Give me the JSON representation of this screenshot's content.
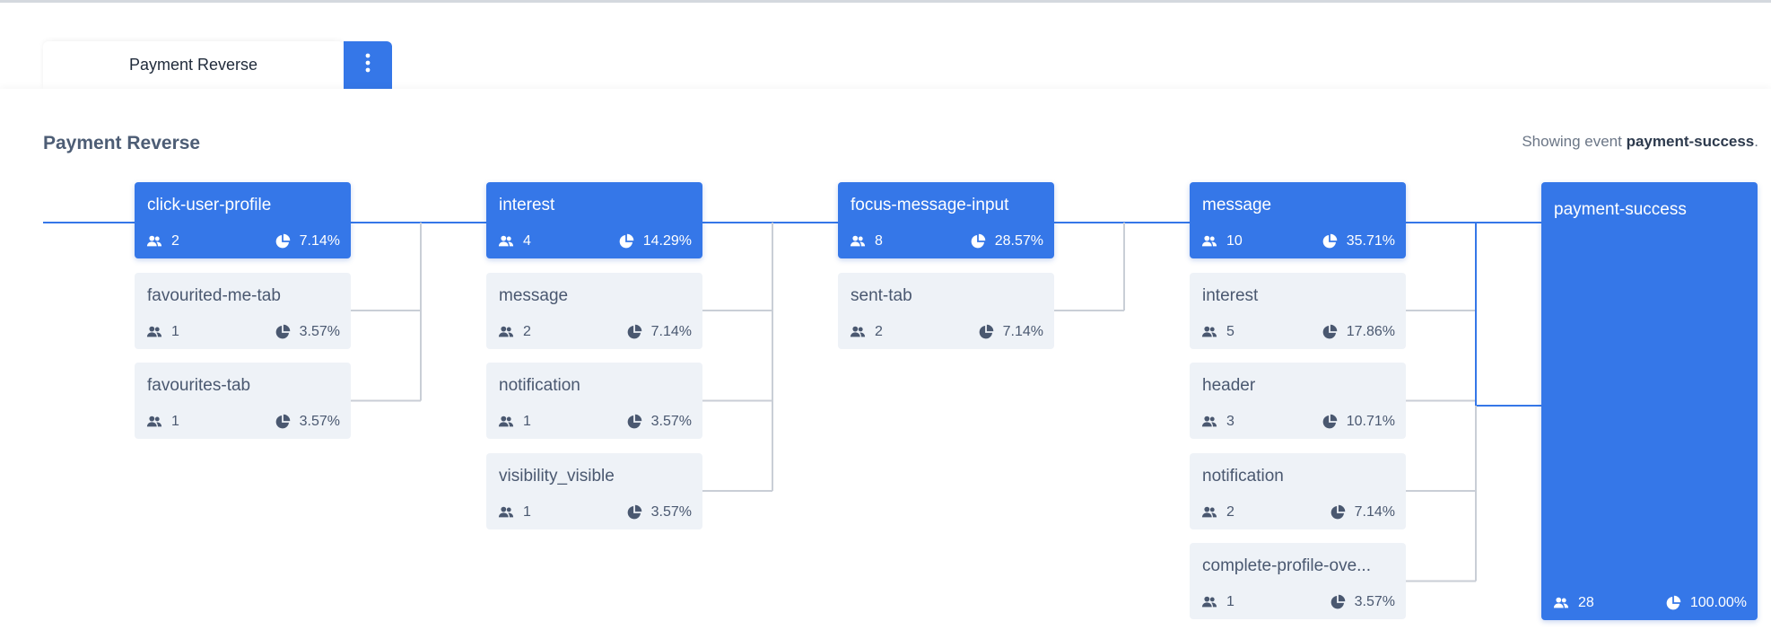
{
  "tab": {
    "label": "Payment Reverse"
  },
  "panel": {
    "title": "Payment Reverse",
    "showing_prefix": "Showing event ",
    "showing_event": "payment-success",
    "showing_suffix": "."
  },
  "colors": {
    "accent": "#3577e8",
    "node_bg": "#eef2f7",
    "line_primary": "#3577e8",
    "line_secondary": "#c9ced6"
  },
  "icons": {
    "users": "users-icon",
    "percent": "pie-chart-icon",
    "menu": "kebab-menu-icon"
  },
  "columns": [
    {
      "nodes": [
        {
          "label": "click-user-profile",
          "users": "2",
          "pct": "7.14%",
          "primary": true
        },
        {
          "label": "favourited-me-tab",
          "users": "1",
          "pct": "3.57%",
          "primary": false
        },
        {
          "label": "favourites-tab",
          "users": "1",
          "pct": "3.57%",
          "primary": false
        }
      ]
    },
    {
      "nodes": [
        {
          "label": "interest",
          "users": "4",
          "pct": "14.29%",
          "primary": true
        },
        {
          "label": "message",
          "users": "2",
          "pct": "7.14%",
          "primary": false
        },
        {
          "label": "notification",
          "users": "1",
          "pct": "3.57%",
          "primary": false
        },
        {
          "label": "visibility_visible",
          "users": "1",
          "pct": "3.57%",
          "primary": false
        }
      ]
    },
    {
      "nodes": [
        {
          "label": "focus-message-input",
          "users": "8",
          "pct": "28.57%",
          "primary": true
        },
        {
          "label": "sent-tab",
          "users": "2",
          "pct": "7.14%",
          "primary": false
        }
      ]
    },
    {
      "nodes": [
        {
          "label": "message",
          "users": "10",
          "pct": "35.71%",
          "primary": true
        },
        {
          "label": "interest",
          "users": "5",
          "pct": "17.86%",
          "primary": false
        },
        {
          "label": "header",
          "users": "3",
          "pct": "10.71%",
          "primary": false
        },
        {
          "label": "notification",
          "users": "2",
          "pct": "7.14%",
          "primary": false
        },
        {
          "label": "complete-profile-ove...",
          "users": "1",
          "pct": "3.57%",
          "primary": false
        }
      ]
    }
  ],
  "final": {
    "label": "payment-success",
    "users": "28",
    "pct": "100.00%"
  }
}
